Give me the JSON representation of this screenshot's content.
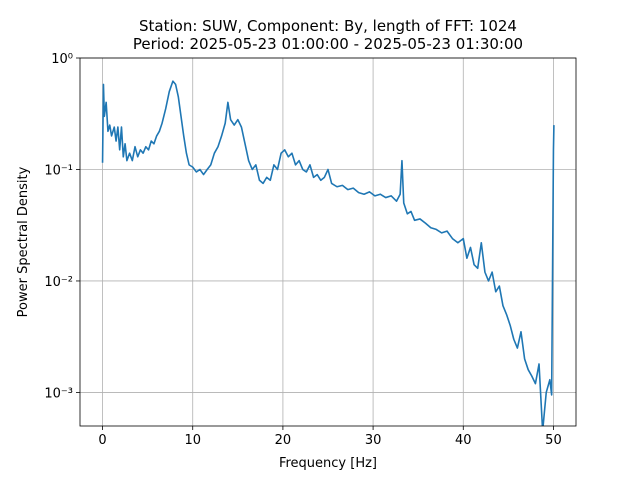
{
  "chart_data": {
    "type": "line",
    "title": "Station: SUW, Component: By, length of FFT: 1024",
    "subtitle": "Period: 2025-05-23 01:00:00 - 2025-05-23 01:30:00",
    "x_label": "Frequency [Hz]",
    "y_label": "Power Spectral Density",
    "color": "#1f77b4",
    "log_y": true,
    "grid": true,
    "xlim": [
      -2.5,
      52.5
    ],
    "xticks": [
      0,
      10,
      20,
      30,
      40,
      50
    ],
    "ylim": [
      0.0005,
      1
    ],
    "yticks": [
      {
        "value": 0.001,
        "label": "10⁻³"
      },
      {
        "value": 0.01,
        "label": "10⁻²"
      },
      {
        "value": 0.1,
        "label": "10⁻¹"
      },
      {
        "value": 1,
        "label": "10⁰"
      }
    ],
    "x": [
      0.0,
      0.1,
      0.2,
      0.4,
      0.6,
      0.8,
      1.0,
      1.3,
      1.5,
      1.7,
      1.9,
      2.1,
      2.3,
      2.5,
      2.7,
      3.0,
      3.3,
      3.6,
      3.9,
      4.2,
      4.5,
      4.8,
      5.1,
      5.4,
      5.7,
      6.0,
      6.3,
      6.6,
      7.0,
      7.4,
      7.8,
      8.1,
      8.4,
      8.7,
      9.0,
      9.3,
      9.6,
      10.0,
      10.4,
      10.8,
      11.2,
      11.6,
      12.0,
      12.4,
      12.8,
      13.2,
      13.6,
      13.9,
      14.2,
      14.6,
      15.0,
      15.4,
      15.8,
      16.2,
      16.6,
      17.0,
      17.4,
      17.8,
      18.2,
      18.6,
      19.0,
      19.4,
      19.8,
      20.2,
      20.6,
      21.0,
      21.4,
      21.8,
      22.2,
      22.6,
      23.0,
      23.4,
      23.8,
      24.2,
      24.6,
      25.0,
      25.4,
      26.0,
      26.6,
      27.2,
      27.8,
      28.4,
      29.0,
      29.6,
      30.2,
      30.8,
      31.4,
      32.0,
      32.6,
      33.0,
      33.2,
      33.4,
      33.8,
      34.2,
      34.6,
      35.2,
      35.8,
      36.4,
      37.0,
      37.6,
      38.2,
      38.8,
      39.4,
      40.0,
      40.4,
      40.8,
      41.2,
      41.6,
      42.0,
      42.4,
      42.8,
      43.2,
      43.6,
      44.0,
      44.4,
      44.8,
      45.2,
      45.6,
      46.0,
      46.4,
      46.8,
      47.2,
      47.6,
      48.0,
      48.4,
      48.8,
      49.2,
      49.6,
      49.8,
      50.0,
      50.05
    ],
    "values": [
      0.115,
      0.58,
      0.3,
      0.4,
      0.22,
      0.25,
      0.2,
      0.24,
      0.18,
      0.24,
      0.15,
      0.24,
      0.13,
      0.17,
      0.12,
      0.14,
      0.12,
      0.16,
      0.13,
      0.15,
      0.14,
      0.16,
      0.15,
      0.18,
      0.17,
      0.2,
      0.22,
      0.26,
      0.35,
      0.5,
      0.62,
      0.58,
      0.45,
      0.3,
      0.2,
      0.14,
      0.11,
      0.105,
      0.095,
      0.1,
      0.09,
      0.1,
      0.11,
      0.14,
      0.16,
      0.2,
      0.26,
      0.4,
      0.28,
      0.25,
      0.28,
      0.24,
      0.17,
      0.12,
      0.1,
      0.11,
      0.08,
      0.075,
      0.085,
      0.08,
      0.11,
      0.1,
      0.14,
      0.15,
      0.13,
      0.14,
      0.11,
      0.12,
      0.1,
      0.095,
      0.11,
      0.085,
      0.09,
      0.08,
      0.085,
      0.1,
      0.075,
      0.07,
      0.072,
      0.066,
      0.068,
      0.062,
      0.06,
      0.063,
      0.058,
      0.06,
      0.056,
      0.058,
      0.052,
      0.06,
      0.12,
      0.05,
      0.04,
      0.042,
      0.035,
      0.036,
      0.033,
      0.03,
      0.029,
      0.027,
      0.028,
      0.024,
      0.022,
      0.024,
      0.016,
      0.02,
      0.014,
      0.013,
      0.022,
      0.012,
      0.01,
      0.012,
      0.008,
      0.009,
      0.006,
      0.005,
      0.004,
      0.003,
      0.0025,
      0.0035,
      0.002,
      0.0016,
      0.0014,
      0.0012,
      0.0018,
      0.00045,
      0.001,
      0.0013,
      0.00095,
      0.15,
      0.25
    ]
  }
}
